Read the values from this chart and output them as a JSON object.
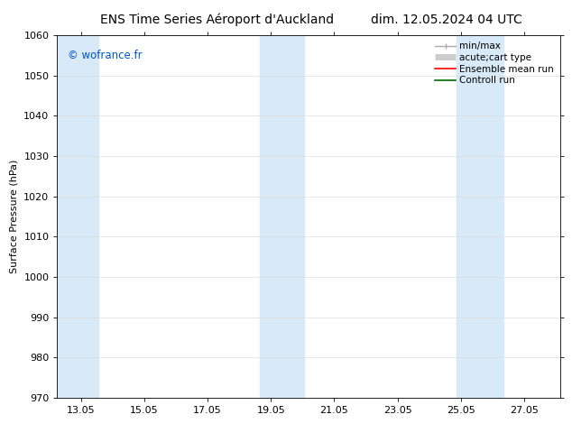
{
  "title_left": "ENS Time Series Aéroport d'Auckland",
  "title_right": "dim. 12.05.2024 04 UTC",
  "ylabel": "Surface Pressure (hPa)",
  "watermark": "© wofrance.fr",
  "watermark_color": "#0055cc",
  "ylim": [
    970,
    1060
  ],
  "yticks": [
    970,
    980,
    990,
    1000,
    1010,
    1020,
    1030,
    1040,
    1050,
    1060
  ],
  "xlim_start": 12.3,
  "xlim_end": 28.2,
  "xticks": [
    13.05,
    15.05,
    17.05,
    19.05,
    21.05,
    23.05,
    25.05,
    27.05
  ],
  "xticklabels": [
    "13.05",
    "15.05",
    "17.05",
    "19.05",
    "21.05",
    "23.05",
    "25.05",
    "27.05"
  ],
  "shaded_bands": [
    {
      "x_start": 12.3,
      "x_end": 13.6
    },
    {
      "x_start": 18.7,
      "x_end": 20.1
    },
    {
      "x_start": 24.9,
      "x_end": 26.4
    }
  ],
  "shade_color": "#d8eaf8",
  "grid_color": "#dddddd",
  "background_color": "#ffffff",
  "legend_entries": [
    {
      "label": "min/max",
      "color": "#aaaaaa",
      "lw": 1.0,
      "style": "minmax"
    },
    {
      "label": "acute;cart type",
      "color": "#cccccc",
      "lw": 5,
      "style": "thick"
    },
    {
      "label": "Ensemble mean run",
      "color": "#ff0000",
      "lw": 1.2,
      "style": "line"
    },
    {
      "label": "Controll run",
      "color": "#006600",
      "lw": 1.2,
      "style": "line"
    }
  ],
  "title_fontsize": 10,
  "label_fontsize": 8,
  "tick_fontsize": 8,
  "legend_fontsize": 7.5
}
